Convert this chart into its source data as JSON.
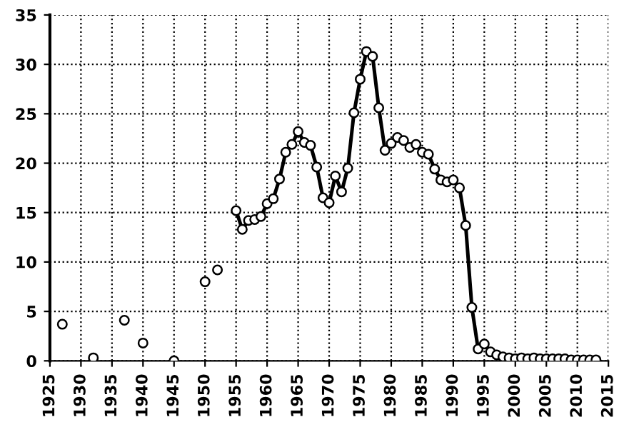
{
  "chart_data": {
    "type": "line",
    "series": [
      {
        "type": "scatter",
        "color": "#000000",
        "x": [
          1927,
          1932,
          1937,
          1940,
          1945,
          1950,
          1952
        ],
        "values": [
          3.7,
          0.3,
          4.1,
          1.8,
          0,
          8,
          9.2
        ]
      },
      {
        "color": "#000000",
        "x": [
          1955,
          1956,
          1957,
          1958,
          1959,
          1960,
          1961,
          1962,
          1963,
          1964,
          1965,
          1966,
          1967,
          1968,
          1969,
          1970,
          1971,
          1972,
          1973,
          1974,
          1975,
          1976,
          1977,
          1978,
          1979,
          1980,
          1981,
          1982,
          1983,
          1984,
          1985,
          1986,
          1987,
          1988,
          1989,
          1990,
          1991,
          1992,
          1993,
          1994,
          1995,
          1996,
          1997,
          1998,
          1999,
          2000,
          2001,
          2002,
          2003,
          2004,
          2005,
          2006,
          2007,
          2008,
          2009,
          2010,
          2011,
          2012,
          2013
        ],
        "values": [
          15.2,
          13.3,
          14.2,
          14.3,
          14.6,
          15.9,
          16.4,
          18.4,
          21.1,
          21.9,
          23.2,
          22.1,
          21.8,
          19.6,
          16.5,
          16.0,
          18.7,
          17.1,
          19.5,
          25.1,
          28.5,
          31.3,
          30.8,
          25.6,
          21.3,
          22.0,
          22.6,
          22.3,
          21.6,
          21.9,
          21.1,
          20.9,
          19.4,
          18.3,
          18.1,
          18.3,
          17.5,
          13.7,
          5.4,
          1.2,
          1.7,
          0.9,
          0.6,
          0.4,
          0.3,
          0.2,
          0.3,
          0.2,
          0.3,
          0.2,
          0.2,
          0.2,
          0.2,
          0.2,
          0.1,
          0.1,
          0.1,
          0.1,
          0.1
        ]
      }
    ],
    "xlim": [
      1925,
      2015
    ],
    "xticks": [
      1925,
      1930,
      1935,
      1940,
      1945,
      1950,
      1955,
      1960,
      1965,
      1970,
      1975,
      1980,
      1985,
      1990,
      1995,
      2000,
      2005,
      2010,
      2015
    ],
    "ylim": [
      0,
      35
    ],
    "yticks": [
      0,
      5,
      10,
      15,
      20,
      25,
      30,
      35
    ],
    "grid": true,
    "marker": "circle",
    "line_style": "solid"
  }
}
